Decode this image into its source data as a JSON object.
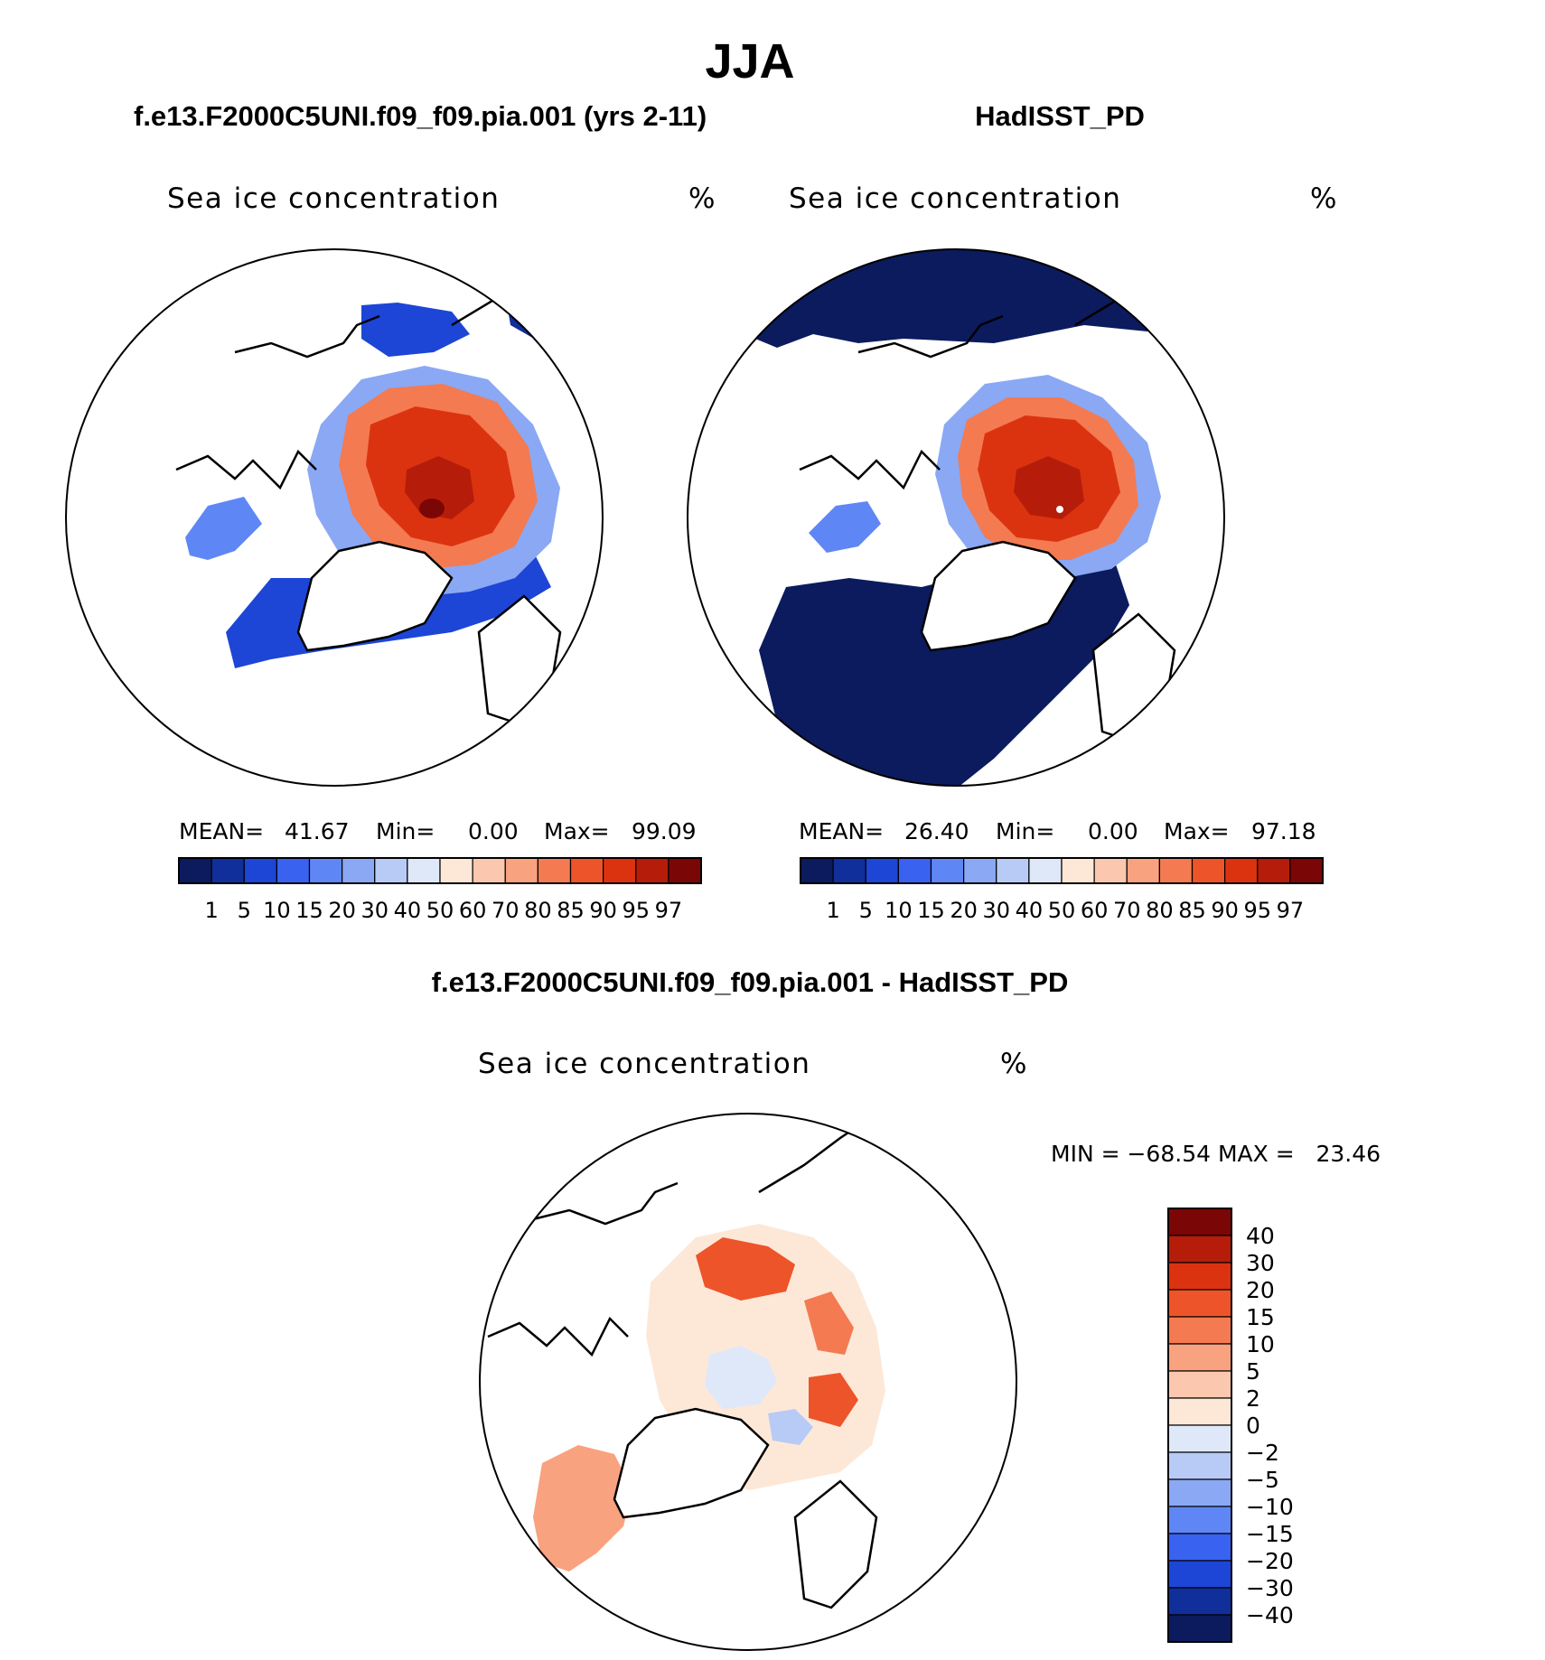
{
  "season": "JJA",
  "palette": {
    "ten": [
      "#0c1b5e",
      "#102f9a",
      "#1d46d6",
      "#3a62f0",
      "#5f86f5",
      "#8aa8f4",
      "#b7cbf6",
      "#dfe8f9",
      "#fde8d8",
      "#fbc7ae",
      "#f9a27f",
      "#f47a51",
      "#ee5429",
      "#db3310",
      "#b51d0a",
      "#7b0606"
    ],
    "diff": [
      "#7b0606",
      "#b51d0a",
      "#db3310",
      "#ee5429",
      "#f47a51",
      "#f9a27f",
      "#fbc7ae",
      "#fde8d8",
      "#dfe8f9",
      "#b7cbf6",
      "#8aa8f4",
      "#5f86f5",
      "#3a62f0",
      "#1d46d6",
      "#102f9a",
      "#0c1b5e"
    ]
  },
  "panels": [
    {
      "header": "f.e13.F2000C5UNI.f09_f09.pia.001 (yrs 2-11)",
      "variable": "Sea ice concentration",
      "units": "%",
      "stats": {
        "mean_label": "MEAN=",
        "mean": "41.67",
        "min_label": "Min=",
        "min": "0.00",
        "max_label": "Max=",
        "max": "99.09"
      }
    },
    {
      "header": "HadISST_PD",
      "variable": "Sea ice concentration",
      "units": "%",
      "stats": {
        "mean_label": "MEAN=",
        "mean": "26.40",
        "min_label": "Min=",
        "min": "0.00",
        "max_label": "Max=",
        "max": "97.18"
      }
    }
  ],
  "diff_panel": {
    "header": "f.e13.F2000C5UNI.f09_f09.pia.001 - HadISST_PD",
    "variable": "Sea ice concentration",
    "units": "%",
    "stats_text": "MIN = −68.54 MAX =   23.46"
  },
  "chart_data": [
    {
      "type": "heatmap",
      "title": "f.e13.F2000C5UNI.f09_f09.pia.001 (yrs 2-11)",
      "field": "Sea ice concentration",
      "units": "%",
      "projection": "north polar stereographic",
      "contour_levels": [
        1,
        5,
        10,
        15,
        20,
        30,
        40,
        50,
        60,
        70,
        80,
        85,
        90,
        95,
        97
      ],
      "tick_labels": [
        "1",
        "5",
        "10",
        "15",
        "20",
        "30",
        "40",
        "50",
        "60",
        "70",
        "80",
        "85",
        "90",
        "95",
        "97"
      ],
      "mean": 41.67,
      "min": 0.0,
      "max": 99.09
    },
    {
      "type": "heatmap",
      "title": "HadISST_PD",
      "field": "Sea ice concentration",
      "units": "%",
      "projection": "north polar stereographic",
      "contour_levels": [
        1,
        5,
        10,
        15,
        20,
        30,
        40,
        50,
        60,
        70,
        80,
        85,
        90,
        95,
        97
      ],
      "tick_labels": [
        "1",
        "5",
        "10",
        "15",
        "20",
        "30",
        "40",
        "50",
        "60",
        "70",
        "80",
        "85",
        "90",
        "95",
        "97"
      ],
      "mean": 26.4,
      "min": 0.0,
      "max": 97.18
    },
    {
      "type": "heatmap",
      "title": "f.e13.F2000C5UNI.f09_f09.pia.001 - HadISST_PD",
      "field": "Sea ice concentration",
      "units": "%",
      "projection": "north polar stereographic",
      "contour_levels": [
        40,
        30,
        20,
        15,
        10,
        5,
        2,
        0,
        -2,
        -5,
        -10,
        -15,
        -20,
        -30,
        -40
      ],
      "tick_labels": [
        "40",
        "30",
        "20",
        "15",
        "10",
        "5",
        "2",
        "0",
        "−2",
        "−5",
        "−10",
        "−15",
        "−20",
        "−30",
        "−40"
      ],
      "min": -68.54,
      "max": 23.46
    }
  ]
}
